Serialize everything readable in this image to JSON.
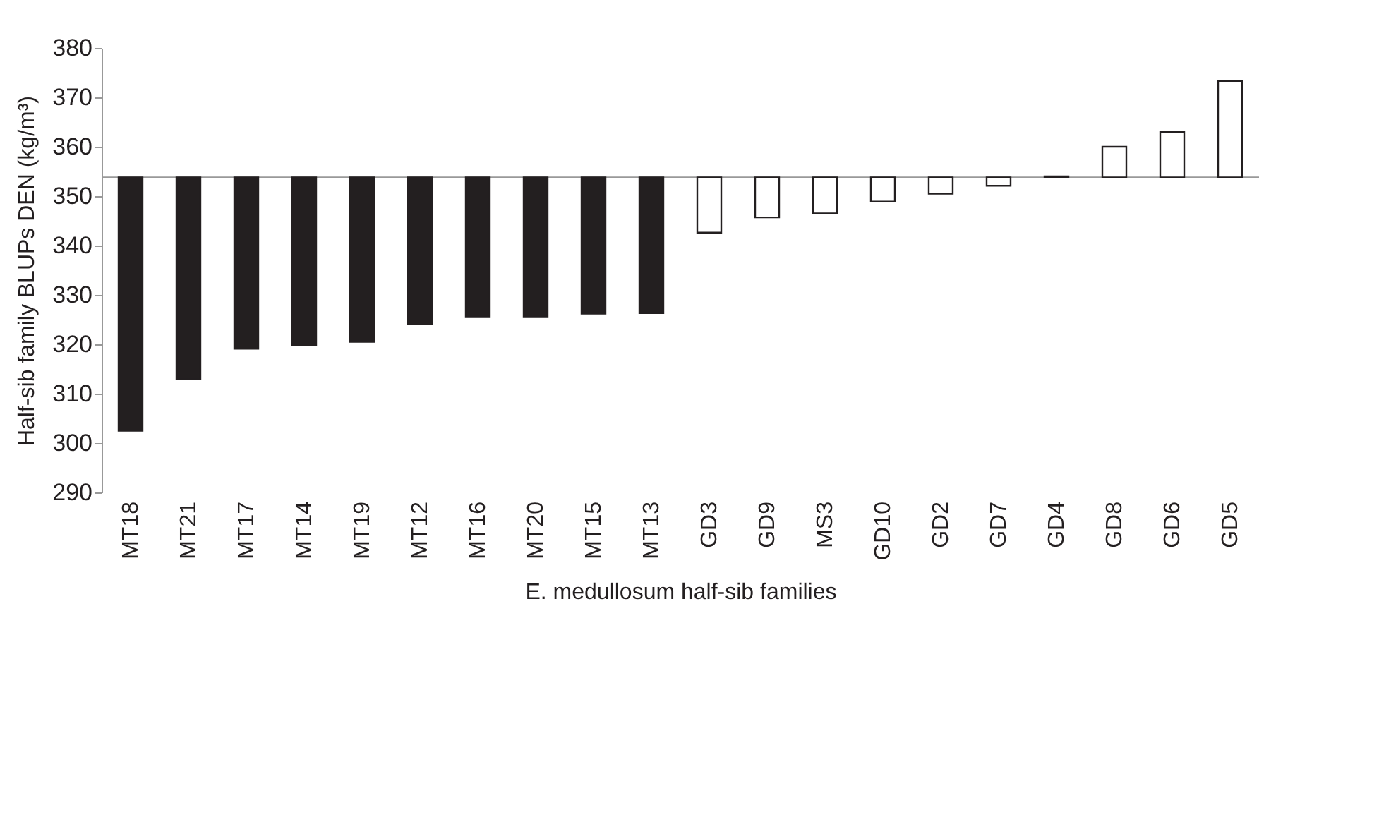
{
  "chart_data": {
    "type": "bar",
    "xlabel": "E. medullosum half-sib families",
    "ylabel": "Half-sib family BLUPs DEN (kg/m³)",
    "categories": [
      "MT18",
      "MT21",
      "MT17",
      "MT14",
      "MT19",
      "MT12",
      "MT16",
      "MT20",
      "MT15",
      "MT13",
      "GD3",
      "GD9",
      "MS3",
      "GD10",
      "GD2",
      "GD7",
      "GD4",
      "GD8",
      "GD6",
      "GD5"
    ],
    "base": [
      353.8,
      353.8,
      353.8,
      353.8,
      353.8,
      353.8,
      353.8,
      353.8,
      353.8,
      353.8,
      353.8,
      353.8,
      353.8,
      353.8,
      353.8,
      353.8,
      353.8,
      353.8,
      353.8,
      353.8
    ],
    "values": [
      -51.3,
      -40.9,
      -34.7,
      -33.9,
      -33.3,
      -29.7,
      -28.3,
      -28.3,
      -27.6,
      -27.5,
      -11.2,
      -8.1,
      -7.3,
      -4.9,
      -3.3,
      -1.7,
      0.2,
      6.2,
      9.2,
      19.5
    ],
    "colors": [
      "#231f20",
      "#231f20",
      "#231f20",
      "#231f20",
      "#231f20",
      "#231f20",
      "#231f20",
      "#231f20",
      "#231f20",
      "#231f20",
      "#ffffff",
      "#ffffff",
      "#ffffff",
      "#ffffff",
      "#ffffff",
      "#ffffff",
      "#ffffff",
      "#ffffff",
      "#ffffff",
      "#ffffff"
    ],
    "ylim": [
      290,
      380
    ],
    "yticks": [
      290,
      300,
      310,
      320,
      330,
      340,
      350,
      360,
      370,
      380
    ],
    "ref_lines": [
      {
        "axis": "y",
        "value": 353.8,
        "color": "#999999"
      }
    ],
    "grid": false
  }
}
